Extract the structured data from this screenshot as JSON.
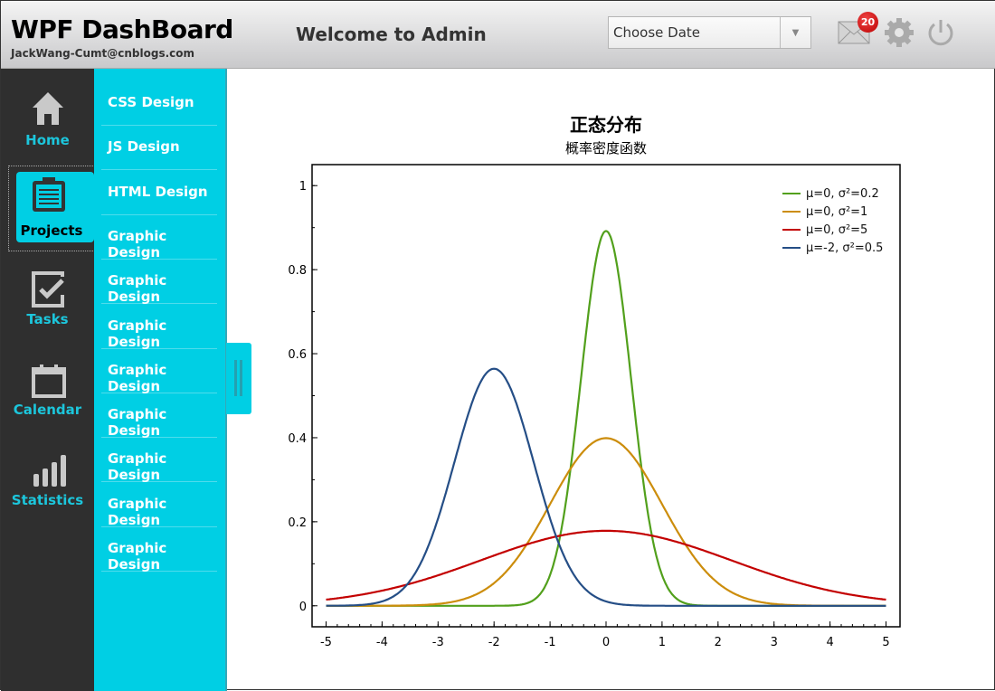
{
  "header": {
    "title": "WPF DashBoard",
    "subtitle": "JackWang-Cumt@cnblogs.com",
    "welcome": "Welcome to Admin",
    "date_select": {
      "value": "Choose Date"
    },
    "mail_badge": "20"
  },
  "sidebar": {
    "items": [
      {
        "label": "Home",
        "icon": "home-icon"
      },
      {
        "label": "Projects",
        "icon": "clipboard-icon",
        "active": true
      },
      {
        "label": "Tasks",
        "icon": "checkbox-icon"
      },
      {
        "label": "Calendar",
        "icon": "calendar-icon"
      },
      {
        "label": "Statistics",
        "icon": "bar-chart-icon"
      }
    ]
  },
  "submenu": {
    "items": [
      "CSS Design",
      "JS Design",
      "HTML Design",
      "Graphic Design",
      "Graphic Design",
      "Graphic Design",
      "Graphic Design",
      "Graphic Design",
      "Graphic Design",
      "Graphic Design",
      "Graphic Design"
    ]
  },
  "chart_data": {
    "type": "line",
    "title": "正态分布",
    "subtitle": "概率密度函数",
    "xlim": [
      -5.25,
      5.25
    ],
    "ylim": [
      -0.05,
      1.05
    ],
    "x_ticks": [
      "-5",
      "-4",
      "-3",
      "-2",
      "-1",
      "0",
      "1",
      "2",
      "3",
      "4",
      "5"
    ],
    "y_ticks": [
      "0",
      "0.2",
      "0.4",
      "0.6",
      "0.8",
      "1"
    ],
    "legend_position": "top-right",
    "grid": false,
    "series": [
      {
        "name": "μ=0, σ²=0.2",
        "mu": 0,
        "variance": 0.2,
        "color": "#52a01c"
      },
      {
        "name": "μ=0, σ²=1",
        "mu": 0,
        "variance": 1,
        "color": "#cc8d0c"
      },
      {
        "name": "μ=0, σ²=5",
        "mu": 0,
        "variance": 5,
        "color": "#c30000"
      },
      {
        "name": "μ=-2, σ²=0.5",
        "mu": -2,
        "variance": 0.5,
        "color": "#254e86"
      }
    ]
  }
}
